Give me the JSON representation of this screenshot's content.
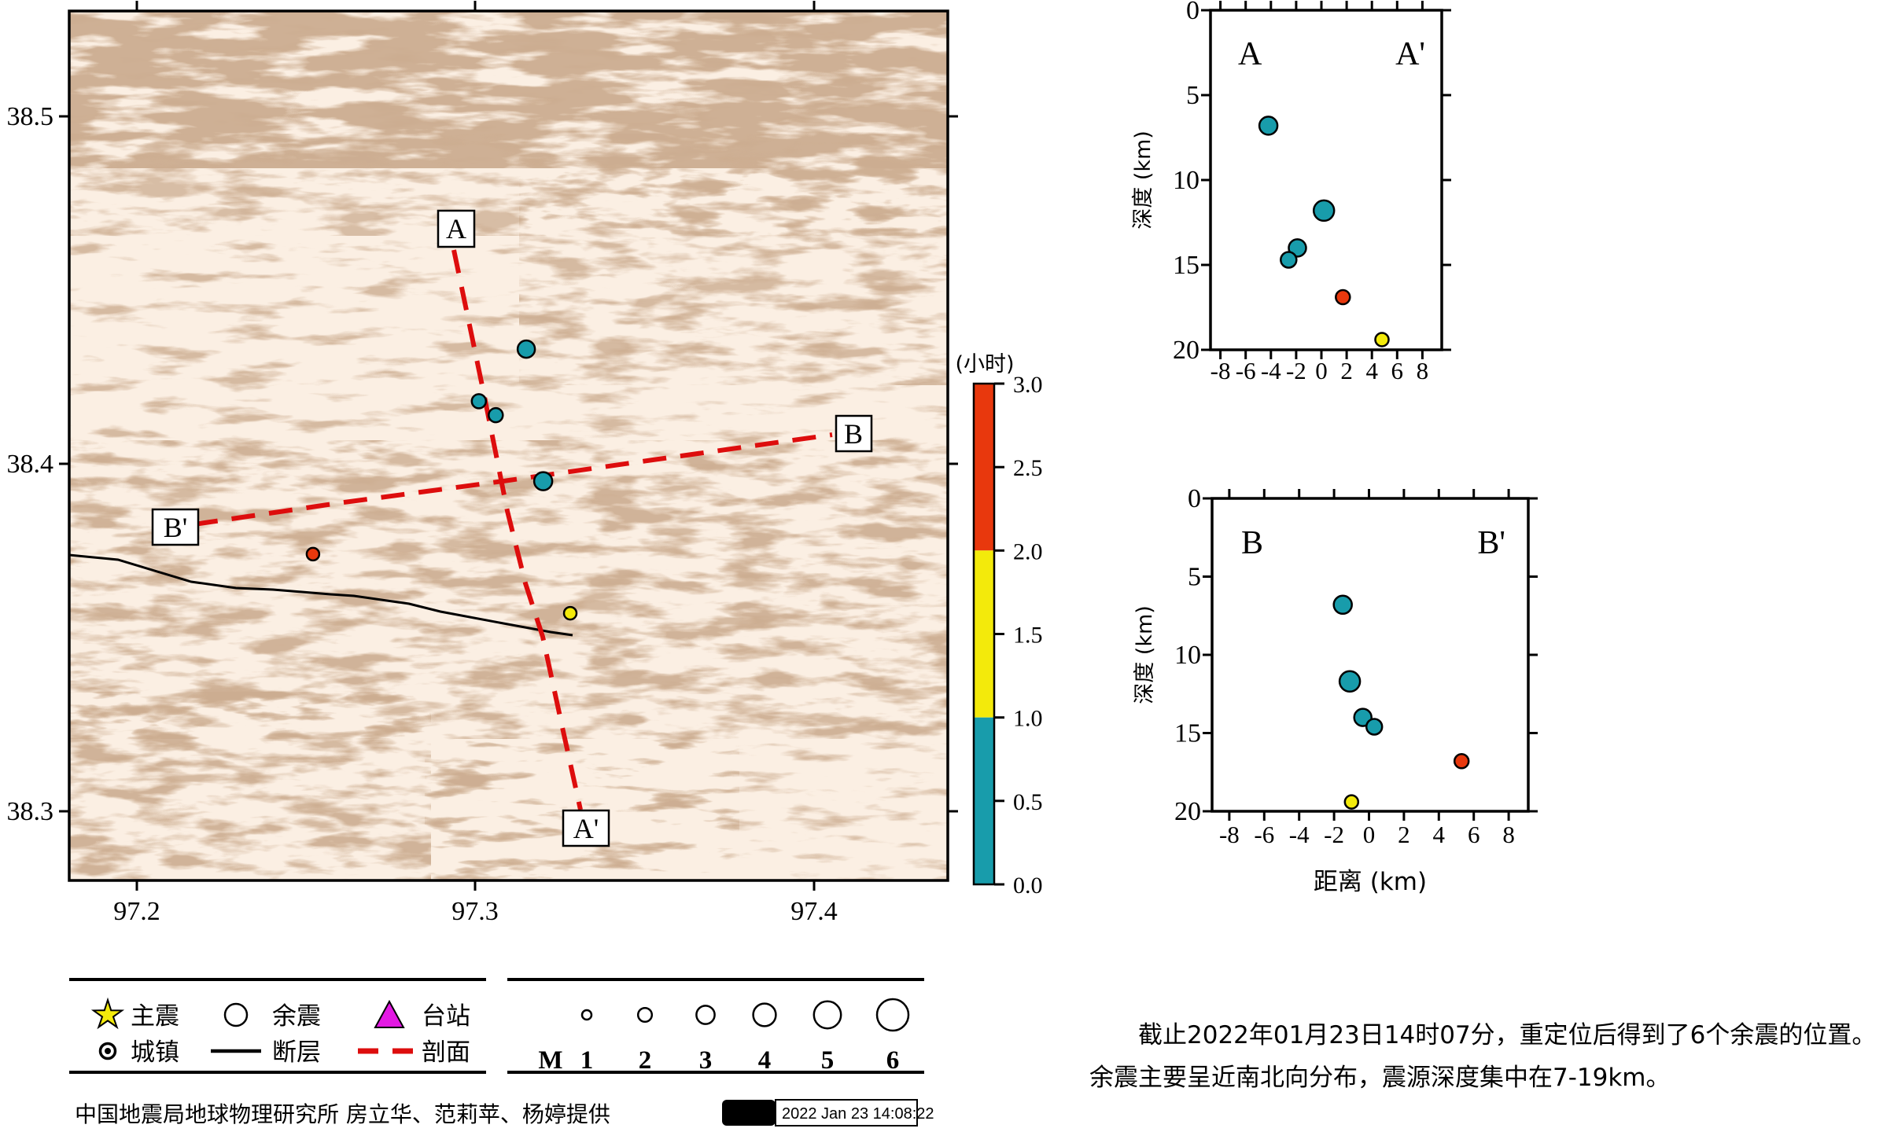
{
  "map": {
    "lon_ticks": [
      "97.2",
      "97.3",
      "97.4"
    ],
    "lat_ticks": [
      "38.5",
      "38.4",
      "38.3"
    ],
    "extent": {
      "lon_min": 97.18,
      "lon_max": 97.44,
      "lat_min": 38.28,
      "lat_max": 38.53
    },
    "section_labels": {
      "a": "A",
      "a_end": "A'",
      "b": "B",
      "b_end": "B'"
    },
    "has_fault_line": true
  },
  "chart_data": [
    {
      "id": "map_epicenters",
      "type": "scatter",
      "xlabel": "longitude",
      "ylabel": "latitude",
      "points": [
        {
          "lon": 97.315,
          "lat": 38.433,
          "hours": "0-1",
          "color": "teal",
          "r": 11
        },
        {
          "lon": 97.301,
          "lat": 38.418,
          "hours": "0-1",
          "color": "teal",
          "r": 9
        },
        {
          "lon": 97.306,
          "lat": 38.414,
          "hours": "0-1",
          "color": "teal",
          "r": 9
        },
        {
          "lon": 97.32,
          "lat": 38.395,
          "hours": "0-1",
          "color": "teal",
          "r": 11.5
        },
        {
          "lon": 97.252,
          "lat": 38.374,
          "hours": "2-3",
          "color": "red",
          "r": 8
        },
        {
          "lon": 97.328,
          "lat": 38.357,
          "hours": "1-2",
          "color": "yellow",
          "r": 8
        }
      ]
    },
    {
      "id": "section_a",
      "type": "scatter",
      "corner_left": "A",
      "corner_right": "A'",
      "xlabel": "",
      "ylabel": "深度 (km)",
      "xlim": [
        -9,
        9
      ],
      "ylim": [
        20,
        0
      ],
      "x_ticks": [
        "-8",
        "-6",
        "-4",
        "-2",
        "0",
        "2",
        "4",
        "6",
        "8"
      ],
      "y_ticks": [
        "0",
        "5",
        "10",
        "15",
        "20"
      ],
      "points": [
        {
          "x": -4.2,
          "y": 6.8,
          "color": "teal",
          "r": 11.5
        },
        {
          "x": 0.2,
          "y": 11.8,
          "color": "teal",
          "r": 13
        },
        {
          "x": -1.9,
          "y": 14.0,
          "color": "teal",
          "r": 11
        },
        {
          "x": -2.6,
          "y": 14.7,
          "color": "teal",
          "r": 10
        },
        {
          "x": 1.7,
          "y": 16.9,
          "color": "red",
          "r": 9
        },
        {
          "x": 4.8,
          "y": 19.4,
          "color": "yellow",
          "r": 8.5
        }
      ]
    },
    {
      "id": "section_b",
      "type": "scatter",
      "corner_left": "B",
      "corner_right": "B'",
      "xlabel": "距离 (km)",
      "ylabel": "深度 (km)",
      "xlim": [
        -9,
        9
      ],
      "ylim": [
        20,
        0
      ],
      "x_ticks": [
        "-8",
        "-6",
        "-4",
        "-2",
        "0",
        "2",
        "4",
        "6",
        "8"
      ],
      "y_ticks": [
        "0",
        "5",
        "10",
        "15",
        "20"
      ],
      "points": [
        {
          "x": -1.5,
          "y": 6.8,
          "color": "teal",
          "r": 11.5
        },
        {
          "x": -1.1,
          "y": 11.7,
          "color": "teal",
          "r": 13
        },
        {
          "x": -0.35,
          "y": 14.0,
          "color": "teal",
          "r": 11
        },
        {
          "x": 0.3,
          "y": 14.6,
          "color": "teal",
          "r": 10
        },
        {
          "x": 5.3,
          "y": 16.8,
          "color": "red",
          "r": 9
        },
        {
          "x": -1.0,
          "y": 19.4,
          "color": "yellow",
          "r": 8.5
        }
      ]
    }
  ],
  "colorbar": {
    "title": "(小时)",
    "min": 0,
    "max": 3,
    "ticks": [
      "3.0",
      "2.5",
      "2.0",
      "1.5",
      "1.0",
      "0.5",
      "0.0"
    ],
    "segments": [
      {
        "from": 2.0,
        "to": 3.0,
        "color": "#e8380d"
      },
      {
        "from": 1.0,
        "to": 2.0,
        "color": "#f3ea0b"
      },
      {
        "from": 0.0,
        "to": 1.0,
        "color": "#189cab"
      }
    ]
  },
  "legend": {
    "items": [
      {
        "symbol": "star",
        "label": "主震"
      },
      {
        "symbol": "circle",
        "label": "余震"
      },
      {
        "symbol": "triangle",
        "label": "台站"
      },
      {
        "symbol": "town",
        "label": "城镇"
      },
      {
        "symbol": "fault-line",
        "label": "断层"
      },
      {
        "symbol": "section-dash",
        "label": "剖面"
      }
    ],
    "magnitude": {
      "prefix": "M",
      "values": [
        "1",
        "2",
        "3",
        "4",
        "5",
        "6"
      ]
    }
  },
  "attribution": {
    "text": "中国地震局地球物理研究所 房立华、范莉苹、杨婷提供",
    "gmt_logo": "GMT",
    "timestamp": "2022 Jan 23 14:08:22"
  },
  "caption": {
    "line1": "截止2022年01月23日14时07分，重定位后得到了6个余震的位置。",
    "line2": "余震主要呈近南北向分布，震源深度集中在7-19km。"
  },
  "colors": {
    "teal": "#189cab",
    "yellow": "#f3ea0b",
    "red": "#e8380d",
    "section_line": "#dd0d0d",
    "fault": "#000000",
    "terrain_brown": "#9b6b48",
    "map_bg": "#fbefe3",
    "station_magenta": "#e319e3"
  }
}
